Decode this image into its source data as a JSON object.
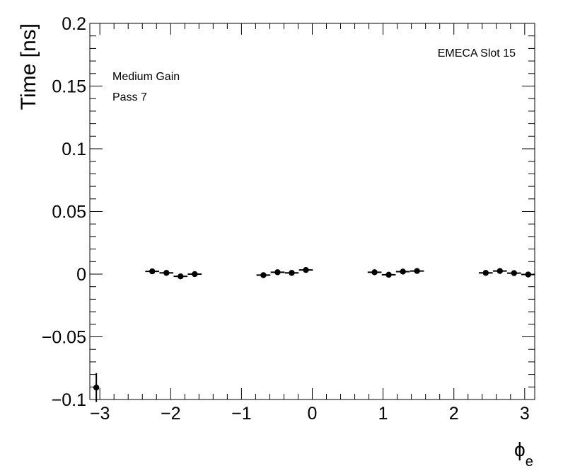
{
  "chart_data": {
    "type": "scatter",
    "title": "",
    "xlabel": "ϕ",
    "xlabel_sub": "e",
    "ylabel": "Time [ns]",
    "xlim": [
      -3.14159,
      3.14159
    ],
    "ylim": [
      -0.1,
      0.2
    ],
    "grid": false,
    "xticks": [
      -3,
      -2,
      -1,
      0,
      1,
      2,
      3
    ],
    "xtick_labels": [
      "−3",
      "−2",
      "−1",
      "0",
      "1",
      "2",
      "3"
    ],
    "yticks": [
      -0.1,
      -0.05,
      0,
      0.05,
      0.1,
      0.15,
      0.2
    ],
    "ytick_labels": [
      "−0.1",
      "−0.05",
      "0",
      "0.05",
      "0.1",
      "0.15",
      "0.2"
    ],
    "annotations": {
      "label_top_right": "EMECA Slot 15",
      "gain": "Medium Gain",
      "pass": "Pass 7"
    },
    "series": [
      {
        "points": [
          {
            "x": -3.05,
            "y": -0.0905,
            "xerr": 0.0,
            "yerr": 0.0115
          },
          {
            "x": -2.26,
            "y": 0.0022,
            "xerr": 0.098,
            "yerr": 0.0008
          },
          {
            "x": -2.06,
            "y": 0.001,
            "xerr": 0.098,
            "yerr": 0.0008
          },
          {
            "x": -1.86,
            "y": -0.0018,
            "xerr": 0.098,
            "yerr": 0.0008
          },
          {
            "x": -1.66,
            "y": 0.0,
            "xerr": 0.098,
            "yerr": 0.0008
          },
          {
            "x": -0.69,
            "y": -0.0008,
            "xerr": 0.098,
            "yerr": 0.0008
          },
          {
            "x": -0.49,
            "y": 0.0015,
            "xerr": 0.098,
            "yerr": 0.0008
          },
          {
            "x": -0.29,
            "y": 0.001,
            "xerr": 0.098,
            "yerr": 0.0008
          },
          {
            "x": -0.09,
            "y": 0.0033,
            "xerr": 0.098,
            "yerr": 0.0008
          },
          {
            "x": 0.88,
            "y": 0.0015,
            "xerr": 0.098,
            "yerr": 0.0008
          },
          {
            "x": 1.08,
            "y": -0.0005,
            "xerr": 0.098,
            "yerr": 0.0008
          },
          {
            "x": 1.28,
            "y": 0.002,
            "xerr": 0.098,
            "yerr": 0.0008
          },
          {
            "x": 1.48,
            "y": 0.0025,
            "xerr": 0.098,
            "yerr": 0.0008
          },
          {
            "x": 2.45,
            "y": 0.001,
            "xerr": 0.098,
            "yerr": 0.0008
          },
          {
            "x": 2.65,
            "y": 0.0025,
            "xerr": 0.098,
            "yerr": 0.0008
          },
          {
            "x": 2.85,
            "y": 0.0008,
            "xerr": 0.098,
            "yerr": 0.0008
          },
          {
            "x": 3.05,
            "y": -0.0003,
            "xerr": 0.098,
            "yerr": 0.0008
          }
        ]
      }
    ]
  }
}
